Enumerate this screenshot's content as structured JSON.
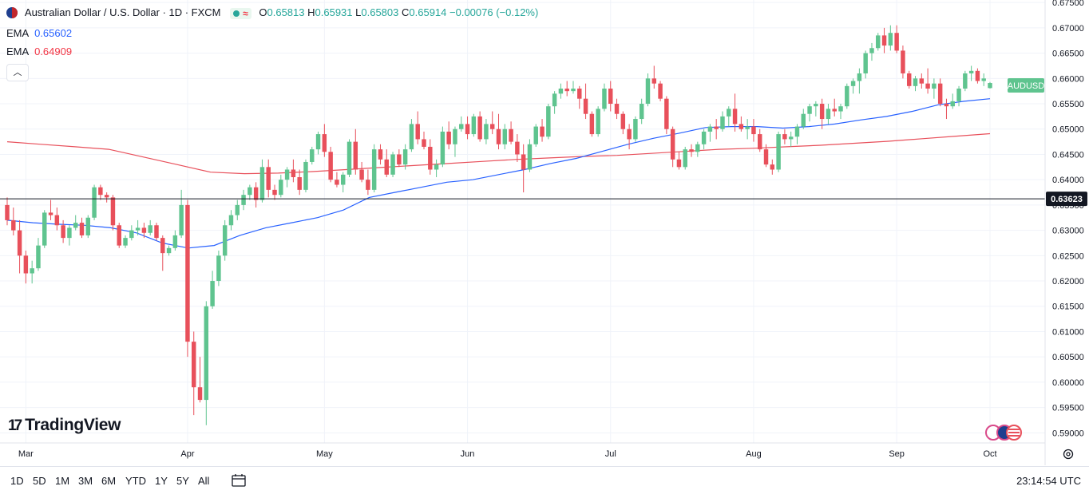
{
  "legend": {
    "title": "Australian Dollar / U.S. Dollar · 1D · FXCM",
    "o_label": "O",
    "o": "0.65813",
    "h_label": "H",
    "h": "0.65931",
    "l_label": "L",
    "l": "0.65803",
    "c_label": "C",
    "c": "0.65914",
    "change": "−0.00076 (−0.12%)"
  },
  "indicators": [
    {
      "name": "EMA",
      "value": "0.65602",
      "color": "#2962ff"
    },
    {
      "name": "EMA",
      "value": "0.64909",
      "color": "#f23645"
    }
  ],
  "colors": {
    "up": "#26a69a",
    "up_body": "#5fc48f",
    "down": "#e8505b",
    "grid": "#f0f3fa",
    "axis": "#131722"
  },
  "branding": {
    "logo": "TradingView",
    "collapse_icon": "chevron-up-icon"
  },
  "range_buttons": [
    "1D",
    "5D",
    "1M",
    "3M",
    "6M",
    "YTD",
    "1Y",
    "5Y",
    "All"
  ],
  "clock": "23:14:54 UTC",
  "chart_data": {
    "type": "candlestick",
    "symbol": "AUDUSD",
    "price_tag": "AUDUSD",
    "horizontal_line": "0.63623",
    "horizontal_line_value": 0.63623,
    "x_ticks": [
      "Mar",
      "Apr",
      "May",
      "Jun",
      "Jul",
      "Aug",
      "Sep",
      "Oct"
    ],
    "y_ticks": [
      "0.67500",
      "0.67000",
      "0.66500",
      "0.66000",
      "0.65500",
      "0.65000",
      "0.64500",
      "0.64000",
      "0.63500",
      "0.63000",
      "0.62500",
      "0.62000",
      "0.61500",
      "0.61000",
      "0.60500",
      "0.60000",
      "0.59500",
      "0.59000"
    ],
    "ylim": [
      0.588,
      0.6755
    ],
    "ema_fast": [
      0.632,
      0.6315,
      0.6312,
      0.631,
      0.6305,
      0.6295,
      0.6275,
      0.6265,
      0.627,
      0.629,
      0.6305,
      0.6315,
      0.6325,
      0.634,
      0.6365,
      0.6375,
      0.6385,
      0.6395,
      0.64,
      0.641,
      0.642,
      0.6432,
      0.6442,
      0.6456,
      0.647,
      0.6482,
      0.6492,
      0.6503,
      0.6505,
      0.6505,
      0.6502,
      0.6505,
      0.651,
      0.6518,
      0.6525,
      0.6535,
      0.6548,
      0.6555,
      0.656
    ],
    "ema_slow": [
      0.6475,
      0.647,
      0.6465,
      0.646,
      0.6445,
      0.643,
      0.6415,
      0.6412,
      0.6413,
      0.6416,
      0.642,
      0.6424,
      0.6428,
      0.6432,
      0.6436,
      0.644,
      0.6443,
      0.6446,
      0.6448,
      0.6452,
      0.6456,
      0.646,
      0.6462,
      0.6465,
      0.6468,
      0.6472,
      0.6476,
      0.6481,
      0.6486,
      0.6491
    ],
    "candles": [
      {
        "o": 0.635,
        "h": 0.6365,
        "l": 0.631,
        "c": 0.632
      },
      {
        "o": 0.632,
        "h": 0.6345,
        "l": 0.629,
        "c": 0.63
      },
      {
        "o": 0.63,
        "h": 0.632,
        "l": 0.6215,
        "c": 0.625
      },
      {
        "o": 0.625,
        "h": 0.626,
        "l": 0.6195,
        "c": 0.6215
      },
      {
        "o": 0.6215,
        "h": 0.624,
        "l": 0.6195,
        "c": 0.6225
      },
      {
        "o": 0.6225,
        "h": 0.6285,
        "l": 0.622,
        "c": 0.627
      },
      {
        "o": 0.627,
        "h": 0.634,
        "l": 0.6265,
        "c": 0.6335
      },
      {
        "o": 0.6335,
        "h": 0.636,
        "l": 0.632,
        "c": 0.633
      },
      {
        "o": 0.633,
        "h": 0.6345,
        "l": 0.63,
        "c": 0.631
      },
      {
        "o": 0.631,
        "h": 0.632,
        "l": 0.6275,
        "c": 0.6285
      },
      {
        "o": 0.6285,
        "h": 0.631,
        "l": 0.627,
        "c": 0.6305
      },
      {
        "o": 0.6305,
        "h": 0.633,
        "l": 0.63,
        "c": 0.6315
      },
      {
        "o": 0.6315,
        "h": 0.6325,
        "l": 0.6285,
        "c": 0.629
      },
      {
        "o": 0.629,
        "h": 0.633,
        "l": 0.6285,
        "c": 0.6325
      },
      {
        "o": 0.6325,
        "h": 0.639,
        "l": 0.632,
        "c": 0.6385
      },
      {
        "o": 0.6385,
        "h": 0.639,
        "l": 0.636,
        "c": 0.637
      },
      {
        "o": 0.637,
        "h": 0.6375,
        "l": 0.6355,
        "c": 0.6365
      },
      {
        "o": 0.6365,
        "h": 0.637,
        "l": 0.63,
        "c": 0.631
      },
      {
        "o": 0.631,
        "h": 0.6315,
        "l": 0.6265,
        "c": 0.627
      },
      {
        "o": 0.627,
        "h": 0.629,
        "l": 0.6265,
        "c": 0.6285
      },
      {
        "o": 0.6285,
        "h": 0.631,
        "l": 0.628,
        "c": 0.63
      },
      {
        "o": 0.63,
        "h": 0.632,
        "l": 0.629,
        "c": 0.6305
      },
      {
        "o": 0.6305,
        "h": 0.6315,
        "l": 0.6285,
        "c": 0.6295
      },
      {
        "o": 0.6295,
        "h": 0.632,
        "l": 0.629,
        "c": 0.631
      },
      {
        "o": 0.631,
        "h": 0.6315,
        "l": 0.628,
        "c": 0.6285
      },
      {
        "o": 0.6285,
        "h": 0.629,
        "l": 0.622,
        "c": 0.6255
      },
      {
        "o": 0.6255,
        "h": 0.627,
        "l": 0.625,
        "c": 0.6265
      },
      {
        "o": 0.6265,
        "h": 0.63,
        "l": 0.626,
        "c": 0.629
      },
      {
        "o": 0.629,
        "h": 0.638,
        "l": 0.6285,
        "c": 0.635
      },
      {
        "o": 0.635,
        "h": 0.636,
        "l": 0.605,
        "c": 0.608
      },
      {
        "o": 0.608,
        "h": 0.61,
        "l": 0.5935,
        "c": 0.599
      },
      {
        "o": 0.599,
        "h": 0.605,
        "l": 0.596,
        "c": 0.5965
      },
      {
        "o": 0.5965,
        "h": 0.616,
        "l": 0.5915,
        "c": 0.615
      },
      {
        "o": 0.615,
        "h": 0.622,
        "l": 0.6145,
        "c": 0.62
      },
      {
        "o": 0.62,
        "h": 0.626,
        "l": 0.619,
        "c": 0.625
      },
      {
        "o": 0.625,
        "h": 0.632,
        "l": 0.624,
        "c": 0.631
      },
      {
        "o": 0.631,
        "h": 0.634,
        "l": 0.63,
        "c": 0.633
      },
      {
        "o": 0.633,
        "h": 0.636,
        "l": 0.632,
        "c": 0.635
      },
      {
        "o": 0.635,
        "h": 0.638,
        "l": 0.634,
        "c": 0.637
      },
      {
        "o": 0.637,
        "h": 0.639,
        "l": 0.636,
        "c": 0.6385
      },
      {
        "o": 0.6385,
        "h": 0.6395,
        "l": 0.6345,
        "c": 0.636
      },
      {
        "o": 0.636,
        "h": 0.644,
        "l": 0.6355,
        "c": 0.6425
      },
      {
        "o": 0.6425,
        "h": 0.644,
        "l": 0.6365,
        "c": 0.638
      },
      {
        "o": 0.638,
        "h": 0.639,
        "l": 0.636,
        "c": 0.637
      },
      {
        "o": 0.637,
        "h": 0.641,
        "l": 0.6365,
        "c": 0.64
      },
      {
        "o": 0.64,
        "h": 0.6425,
        "l": 0.6385,
        "c": 0.642
      },
      {
        "o": 0.642,
        "h": 0.644,
        "l": 0.6395,
        "c": 0.6405
      },
      {
        "o": 0.6405,
        "h": 0.642,
        "l": 0.637,
        "c": 0.638
      },
      {
        "o": 0.638,
        "h": 0.644,
        "l": 0.6375,
        "c": 0.6435
      },
      {
        "o": 0.6435,
        "h": 0.6465,
        "l": 0.643,
        "c": 0.646
      },
      {
        "o": 0.646,
        "h": 0.6495,
        "l": 0.645,
        "c": 0.649
      },
      {
        "o": 0.649,
        "h": 0.651,
        "l": 0.6445,
        "c": 0.6455
      },
      {
        "o": 0.6455,
        "h": 0.6465,
        "l": 0.6395,
        "c": 0.64
      },
      {
        "o": 0.64,
        "h": 0.6415,
        "l": 0.6385,
        "c": 0.639
      },
      {
        "o": 0.639,
        "h": 0.6415,
        "l": 0.6375,
        "c": 0.641
      },
      {
        "o": 0.641,
        "h": 0.648,
        "l": 0.6405,
        "c": 0.6475
      },
      {
        "o": 0.6475,
        "h": 0.65,
        "l": 0.641,
        "c": 0.642
      },
      {
        "o": 0.642,
        "h": 0.6435,
        "l": 0.6395,
        "c": 0.64
      },
      {
        "o": 0.64,
        "h": 0.642,
        "l": 0.637,
        "c": 0.638
      },
      {
        "o": 0.638,
        "h": 0.647,
        "l": 0.6375,
        "c": 0.646
      },
      {
        "o": 0.646,
        "h": 0.647,
        "l": 0.643,
        "c": 0.644
      },
      {
        "o": 0.644,
        "h": 0.646,
        "l": 0.6405,
        "c": 0.641
      },
      {
        "o": 0.641,
        "h": 0.6455,
        "l": 0.6405,
        "c": 0.645
      },
      {
        "o": 0.645,
        "h": 0.646,
        "l": 0.6425,
        "c": 0.643
      },
      {
        "o": 0.643,
        "h": 0.647,
        "l": 0.642,
        "c": 0.646
      },
      {
        "o": 0.646,
        "h": 0.652,
        "l": 0.6455,
        "c": 0.651
      },
      {
        "o": 0.651,
        "h": 0.6535,
        "l": 0.647,
        "c": 0.648
      },
      {
        "o": 0.648,
        "h": 0.6495,
        "l": 0.646,
        "c": 0.6465
      },
      {
        "o": 0.6465,
        "h": 0.648,
        "l": 0.641,
        "c": 0.642
      },
      {
        "o": 0.642,
        "h": 0.644,
        "l": 0.6405,
        "c": 0.643
      },
      {
        "o": 0.643,
        "h": 0.6505,
        "l": 0.6425,
        "c": 0.6495
      },
      {
        "o": 0.6495,
        "h": 0.6515,
        "l": 0.646,
        "c": 0.647
      },
      {
        "o": 0.647,
        "h": 0.6505,
        "l": 0.6445,
        "c": 0.65
      },
      {
        "o": 0.65,
        "h": 0.6525,
        "l": 0.6495,
        "c": 0.651
      },
      {
        "o": 0.651,
        "h": 0.6525,
        "l": 0.648,
        "c": 0.649
      },
      {
        "o": 0.649,
        "h": 0.653,
        "l": 0.6485,
        "c": 0.6525
      },
      {
        "o": 0.6525,
        "h": 0.6535,
        "l": 0.6475,
        "c": 0.648
      },
      {
        "o": 0.648,
        "h": 0.652,
        "l": 0.647,
        "c": 0.651
      },
      {
        "o": 0.651,
        "h": 0.6535,
        "l": 0.649,
        "c": 0.65
      },
      {
        "o": 0.65,
        "h": 0.653,
        "l": 0.646,
        "c": 0.647
      },
      {
        "o": 0.647,
        "h": 0.651,
        "l": 0.646,
        "c": 0.65
      },
      {
        "o": 0.65,
        "h": 0.6515,
        "l": 0.647,
        "c": 0.6475
      },
      {
        "o": 0.6475,
        "h": 0.649,
        "l": 0.6435,
        "c": 0.645
      },
      {
        "o": 0.645,
        "h": 0.647,
        "l": 0.6375,
        "c": 0.642
      },
      {
        "o": 0.642,
        "h": 0.648,
        "l": 0.6415,
        "c": 0.647
      },
      {
        "o": 0.647,
        "h": 0.651,
        "l": 0.6465,
        "c": 0.6505
      },
      {
        "o": 0.6505,
        "h": 0.652,
        "l": 0.6475,
        "c": 0.6485
      },
      {
        "o": 0.6485,
        "h": 0.655,
        "l": 0.648,
        "c": 0.6545
      },
      {
        "o": 0.6545,
        "h": 0.6575,
        "l": 0.653,
        "c": 0.657
      },
      {
        "o": 0.657,
        "h": 0.659,
        "l": 0.656,
        "c": 0.658
      },
      {
        "o": 0.658,
        "h": 0.6595,
        "l": 0.6565,
        "c": 0.6575
      },
      {
        "o": 0.6575,
        "h": 0.6595,
        "l": 0.657,
        "c": 0.658
      },
      {
        "o": 0.658,
        "h": 0.6585,
        "l": 0.654,
        "c": 0.656
      },
      {
        "o": 0.656,
        "h": 0.659,
        "l": 0.652,
        "c": 0.653
      },
      {
        "o": 0.653,
        "h": 0.6535,
        "l": 0.6485,
        "c": 0.649
      },
      {
        "o": 0.649,
        "h": 0.6545,
        "l": 0.6485,
        "c": 0.654
      },
      {
        "o": 0.654,
        "h": 0.659,
        "l": 0.6535,
        "c": 0.658
      },
      {
        "o": 0.658,
        "h": 0.6595,
        "l": 0.6535,
        "c": 0.655
      },
      {
        "o": 0.655,
        "h": 0.656,
        "l": 0.652,
        "c": 0.653
      },
      {
        "o": 0.653,
        "h": 0.6535,
        "l": 0.649,
        "c": 0.65
      },
      {
        "o": 0.65,
        "h": 0.651,
        "l": 0.646,
        "c": 0.648
      },
      {
        "o": 0.648,
        "h": 0.6525,
        "l": 0.6475,
        "c": 0.652
      },
      {
        "o": 0.652,
        "h": 0.656,
        "l": 0.651,
        "c": 0.655
      },
      {
        "o": 0.655,
        "h": 0.661,
        "l": 0.6545,
        "c": 0.66
      },
      {
        "o": 0.66,
        "h": 0.6625,
        "l": 0.658,
        "c": 0.659
      },
      {
        "o": 0.659,
        "h": 0.6595,
        "l": 0.6555,
        "c": 0.656
      },
      {
        "o": 0.656,
        "h": 0.6565,
        "l": 0.649,
        "c": 0.65
      },
      {
        "o": 0.65,
        "h": 0.6505,
        "l": 0.6425,
        "c": 0.644
      },
      {
        "o": 0.644,
        "h": 0.6455,
        "l": 0.642,
        "c": 0.6425
      },
      {
        "o": 0.6425,
        "h": 0.6465,
        "l": 0.642,
        "c": 0.646
      },
      {
        "o": 0.646,
        "h": 0.647,
        "l": 0.6445,
        "c": 0.6455
      },
      {
        "o": 0.6455,
        "h": 0.6475,
        "l": 0.6445,
        "c": 0.647
      },
      {
        "o": 0.647,
        "h": 0.65,
        "l": 0.646,
        "c": 0.6495
      },
      {
        "o": 0.6495,
        "h": 0.651,
        "l": 0.6475,
        "c": 0.6505
      },
      {
        "o": 0.6505,
        "h": 0.652,
        "l": 0.648,
        "c": 0.65
      },
      {
        "o": 0.65,
        "h": 0.6535,
        "l": 0.6495,
        "c": 0.6525
      },
      {
        "o": 0.6525,
        "h": 0.6545,
        "l": 0.6505,
        "c": 0.654
      },
      {
        "o": 0.654,
        "h": 0.657,
        "l": 0.6495,
        "c": 0.651
      },
      {
        "o": 0.651,
        "h": 0.6525,
        "l": 0.6495,
        "c": 0.65
      },
      {
        "o": 0.65,
        "h": 0.652,
        "l": 0.648,
        "c": 0.6505
      },
      {
        "o": 0.6505,
        "h": 0.652,
        "l": 0.6475,
        "c": 0.649
      },
      {
        "o": 0.649,
        "h": 0.65,
        "l": 0.6455,
        "c": 0.646
      },
      {
        "o": 0.646,
        "h": 0.647,
        "l": 0.6425,
        "c": 0.643
      },
      {
        "o": 0.643,
        "h": 0.644,
        "l": 0.641,
        "c": 0.642
      },
      {
        "o": 0.642,
        "h": 0.6495,
        "l": 0.6415,
        "c": 0.649
      },
      {
        "o": 0.649,
        "h": 0.65,
        "l": 0.647,
        "c": 0.648
      },
      {
        "o": 0.648,
        "h": 0.6495,
        "l": 0.6465,
        "c": 0.6485
      },
      {
        "o": 0.6485,
        "h": 0.651,
        "l": 0.647,
        "c": 0.6505
      },
      {
        "o": 0.6505,
        "h": 0.654,
        "l": 0.65,
        "c": 0.653
      },
      {
        "o": 0.653,
        "h": 0.655,
        "l": 0.6515,
        "c": 0.6545
      },
      {
        "o": 0.6545,
        "h": 0.6555,
        "l": 0.6525,
        "c": 0.655
      },
      {
        "o": 0.655,
        "h": 0.656,
        "l": 0.65,
        "c": 0.652
      },
      {
        "o": 0.652,
        "h": 0.655,
        "l": 0.651,
        "c": 0.654
      },
      {
        "o": 0.654,
        "h": 0.656,
        "l": 0.6525,
        "c": 0.6535
      },
      {
        "o": 0.6535,
        "h": 0.655,
        "l": 0.652,
        "c": 0.6545
      },
      {
        "o": 0.6545,
        "h": 0.659,
        "l": 0.654,
        "c": 0.6585
      },
      {
        "o": 0.6585,
        "h": 0.66,
        "l": 0.657,
        "c": 0.6595
      },
      {
        "o": 0.6595,
        "h": 0.662,
        "l": 0.657,
        "c": 0.661
      },
      {
        "o": 0.661,
        "h": 0.6655,
        "l": 0.66,
        "c": 0.665
      },
      {
        "o": 0.665,
        "h": 0.667,
        "l": 0.6635,
        "c": 0.666
      },
      {
        "o": 0.666,
        "h": 0.669,
        "l": 0.6655,
        "c": 0.6685
      },
      {
        "o": 0.6685,
        "h": 0.67,
        "l": 0.665,
        "c": 0.6665
      },
      {
        "o": 0.6665,
        "h": 0.6705,
        "l": 0.6655,
        "c": 0.669
      },
      {
        "o": 0.669,
        "h": 0.6705,
        "l": 0.665,
        "c": 0.6655
      },
      {
        "o": 0.6655,
        "h": 0.6665,
        "l": 0.66,
        "c": 0.661
      },
      {
        "o": 0.661,
        "h": 0.6615,
        "l": 0.658,
        "c": 0.6585
      },
      {
        "o": 0.6585,
        "h": 0.6605,
        "l": 0.6575,
        "c": 0.66
      },
      {
        "o": 0.66,
        "h": 0.661,
        "l": 0.658,
        "c": 0.659
      },
      {
        "o": 0.659,
        "h": 0.662,
        "l": 0.657,
        "c": 0.658
      },
      {
        "o": 0.658,
        "h": 0.66,
        "l": 0.656,
        "c": 0.659
      },
      {
        "o": 0.659,
        "h": 0.66,
        "l": 0.6545,
        "c": 0.655
      },
      {
        "o": 0.655,
        "h": 0.656,
        "l": 0.652,
        "c": 0.6545
      },
      {
        "o": 0.6545,
        "h": 0.657,
        "l": 0.654,
        "c": 0.6555
      },
      {
        "o": 0.6555,
        "h": 0.6585,
        "l": 0.6545,
        "c": 0.658
      },
      {
        "o": 0.658,
        "h": 0.6615,
        "l": 0.6575,
        "c": 0.661
      },
      {
        "o": 0.661,
        "h": 0.6625,
        "l": 0.6595,
        "c": 0.6615
      },
      {
        "o": 0.6615,
        "h": 0.662,
        "l": 0.659,
        "c": 0.6595
      },
      {
        "o": 0.6595,
        "h": 0.661,
        "l": 0.6585,
        "c": 0.66
      },
      {
        "o": 0.6581,
        "h": 0.6593,
        "l": 0.658,
        "c": 0.6591
      }
    ]
  }
}
